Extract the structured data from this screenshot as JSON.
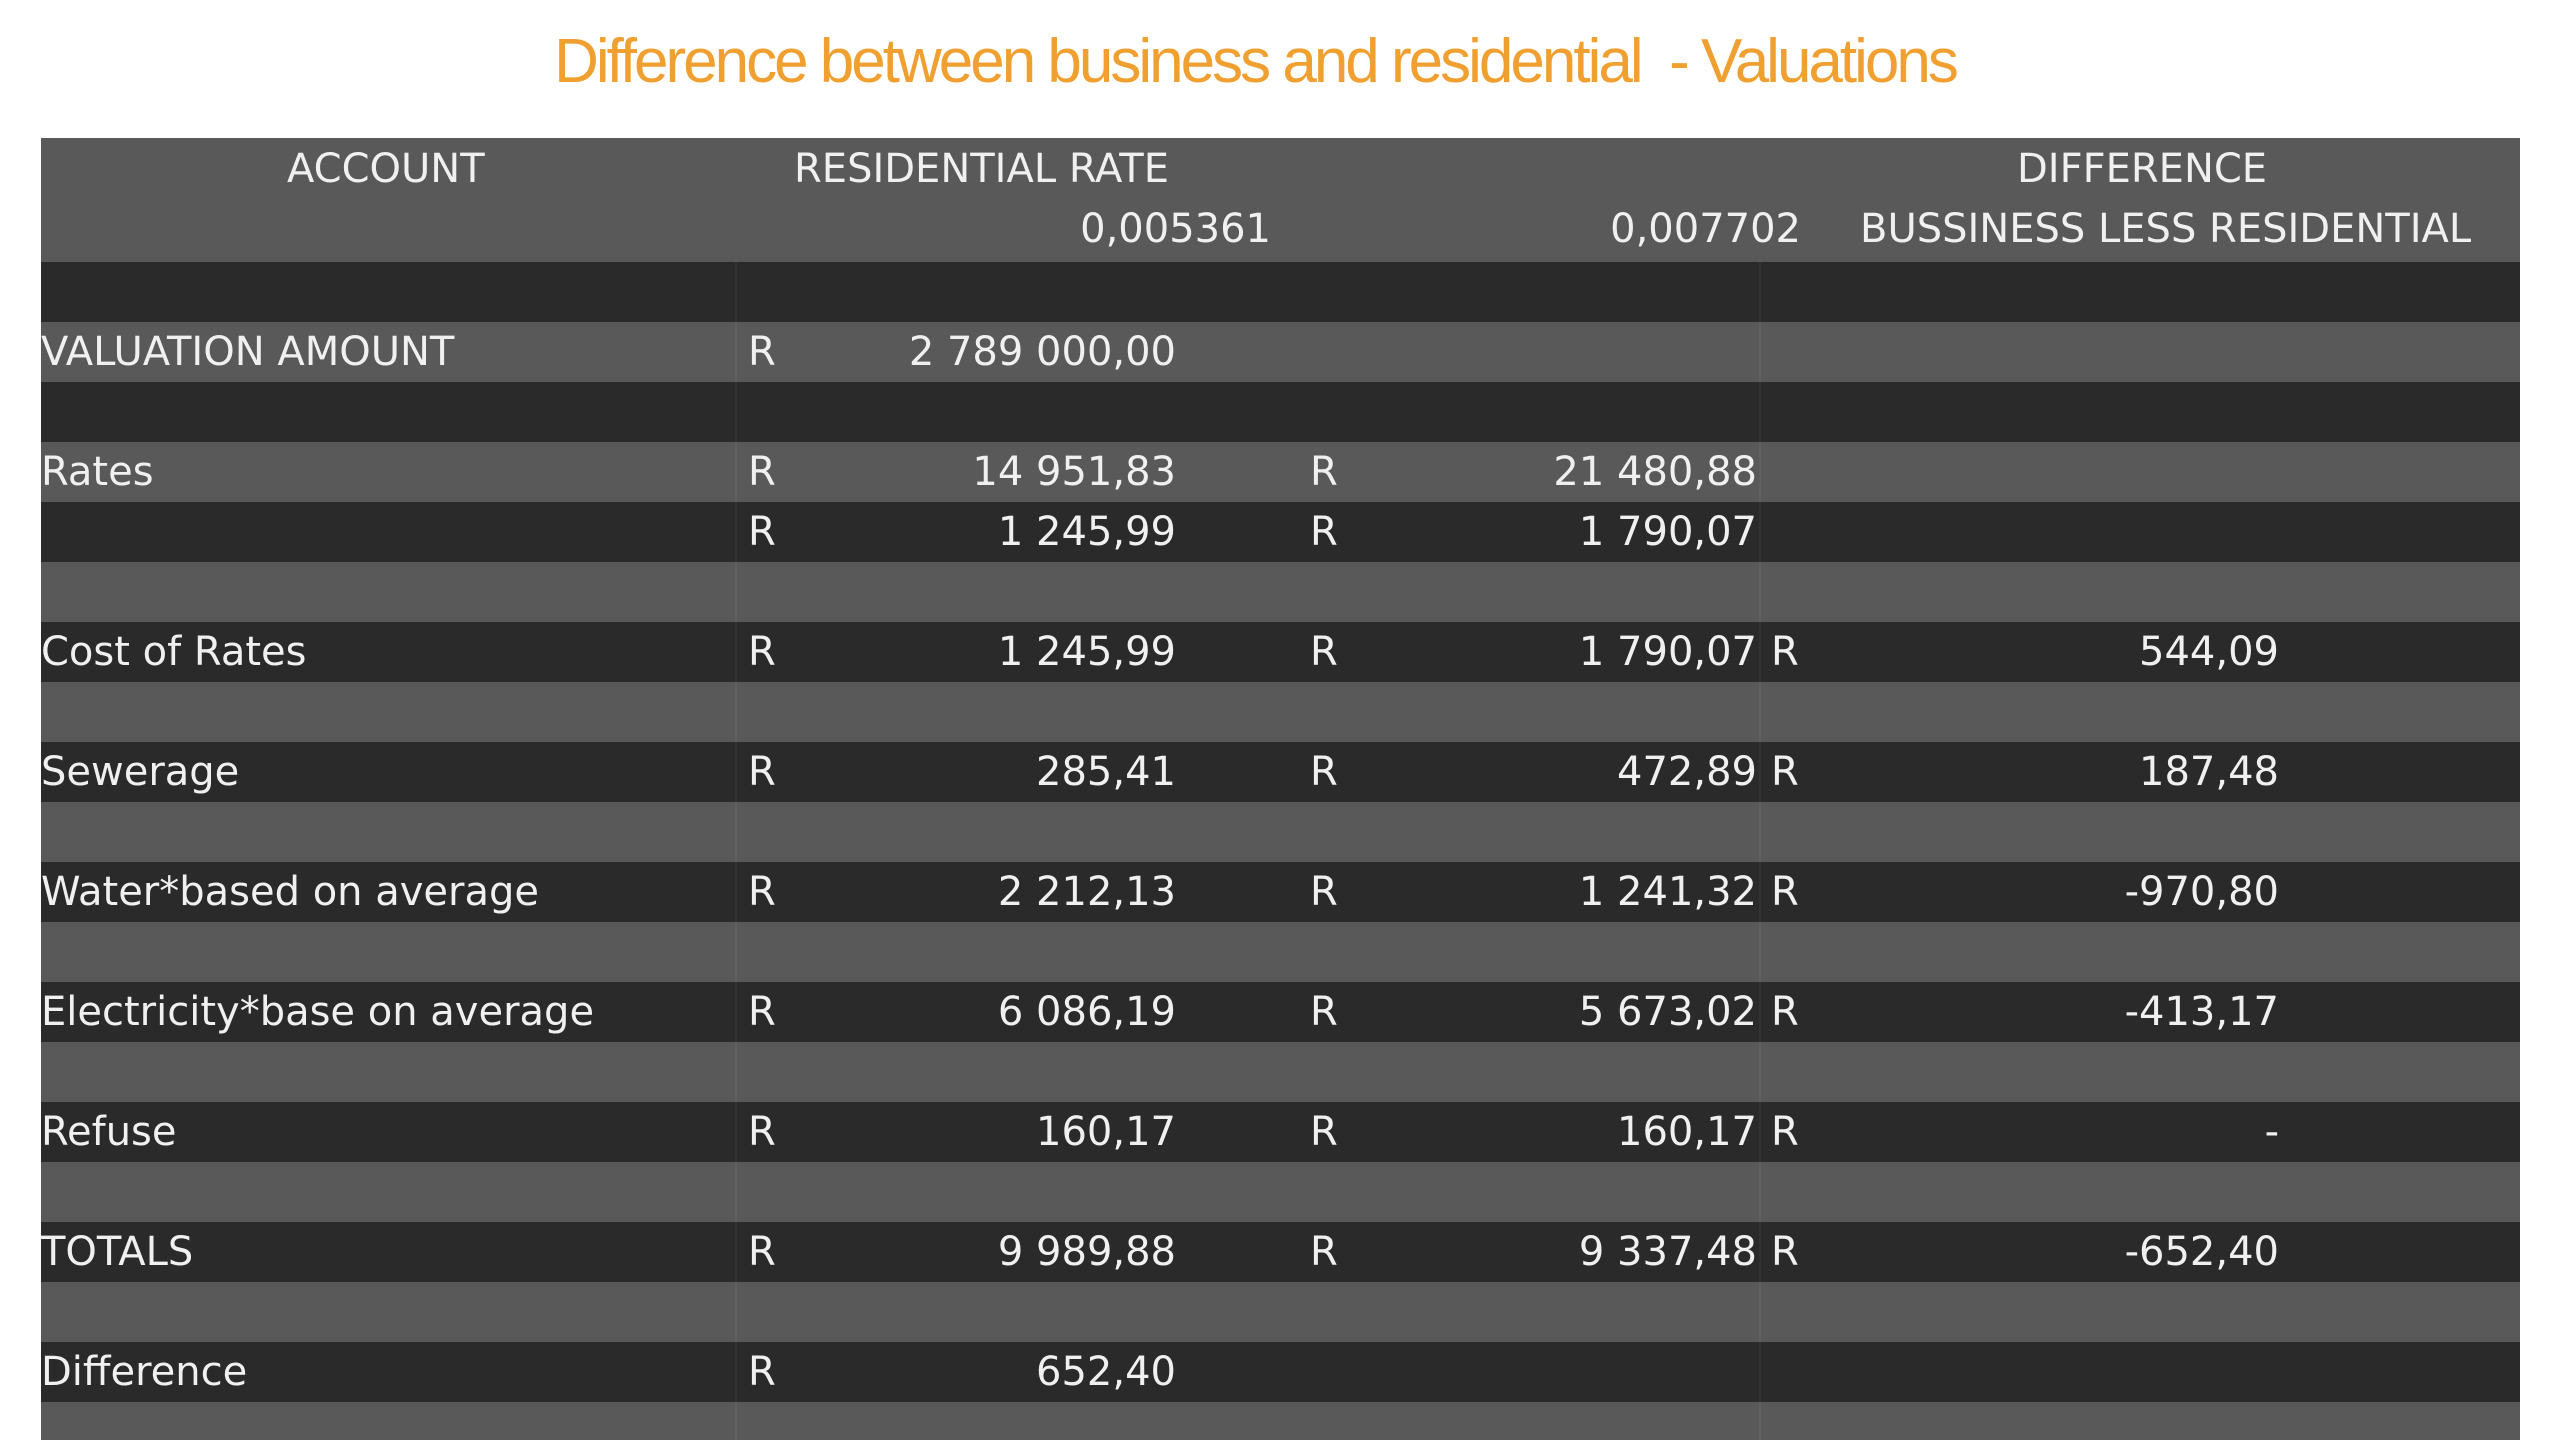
{
  "title": "Difference between business and residential  - Valuations",
  "header": {
    "account": "ACCOUNT",
    "residential_rate": "RESIDENTIAL RATE",
    "difference": "DIFFERENCE",
    "residential_value": "0,005361",
    "business_value": "0,007702",
    "difference_sub": "BUSSINESS LESS RESIDENTIAL"
  },
  "rows": [
    {
      "label": "",
      "r1": "",
      "v1": "",
      "r2": "",
      "v2": "",
      "r3": "",
      "v3": ""
    },
    {
      "label": "VALUATION AMOUNT",
      "r1": "R",
      "v1": "2 789 000,00",
      "r2": "",
      "v2": "",
      "r3": "",
      "v3": ""
    },
    {
      "label": "",
      "r1": "",
      "v1": "",
      "r2": "",
      "v2": "",
      "r3": "",
      "v3": ""
    },
    {
      "label": "Rates",
      "r1": "R",
      "v1": "14 951,83",
      "r2": "R",
      "v2": "21 480,88",
      "r3": "",
      "v3": ""
    },
    {
      "label": "",
      "r1": "R",
      "v1": "1 245,99",
      "r2": "R",
      "v2": "1 790,07",
      "r3": "",
      "v3": ""
    },
    {
      "label": "",
      "r1": "",
      "v1": "",
      "r2": "",
      "v2": "",
      "r3": "",
      "v3": ""
    },
    {
      "label": "Cost of Rates",
      "r1": "R",
      "v1": "1 245,99",
      "r2": "R",
      "v2": "1 790,07",
      "r3": "R",
      "v3": "544,09"
    },
    {
      "label": "",
      "r1": "",
      "v1": "",
      "r2": "",
      "v2": "",
      "r3": "",
      "v3": ""
    },
    {
      "label": "Sewerage",
      "r1": "R",
      "v1": "285,41",
      "r2": "R",
      "v2": "472,89",
      "r3": "R",
      "v3": "187,48"
    },
    {
      "label": "",
      "r1": "",
      "v1": "",
      "r2": "",
      "v2": "",
      "r3": "",
      "v3": ""
    },
    {
      "label": "Water*based on average",
      "r1": "R",
      "v1": "2 212,13",
      "r2": "R",
      "v2": "1 241,32",
      "r3": "R",
      "v3": "-970,80"
    },
    {
      "label": "",
      "r1": "",
      "v1": "",
      "r2": "",
      "v2": "",
      "r3": "",
      "v3": ""
    },
    {
      "label": "Electricity*base on average",
      "r1": "R",
      "v1": "6 086,19",
      "r2": "R",
      "v2": "5 673,02",
      "r3": "R",
      "v3": "-413,17"
    },
    {
      "label": "",
      "r1": "",
      "v1": "",
      "r2": "",
      "v2": "",
      "r3": "",
      "v3": ""
    },
    {
      "label": "Refuse",
      "r1": "R",
      "v1": "160,17",
      "r2": "R",
      "v2": "160,17",
      "r3": "R",
      "v3": "-"
    },
    {
      "label": "",
      "r1": "",
      "v1": "",
      "r2": "",
      "v2": "",
      "r3": "",
      "v3": ""
    },
    {
      "label": "TOTALS",
      "r1": "R",
      "v1": "9 989,88",
      "r2": "R",
      "v2": "9 337,48",
      "r3": "R",
      "v3": "-652,40"
    },
    {
      "label": "",
      "r1": "",
      "v1": "",
      "r2": "",
      "v2": "",
      "r3": "",
      "v3": ""
    },
    {
      "label": "Difference",
      "r1": "R",
      "v1": "652,40",
      "r2": "",
      "v2": "",
      "r3": "",
      "v3": ""
    },
    {
      "label": "",
      "r1": "",
      "v1": "",
      "r2": "",
      "v2": "",
      "r3": "",
      "v3": ""
    }
  ]
}
